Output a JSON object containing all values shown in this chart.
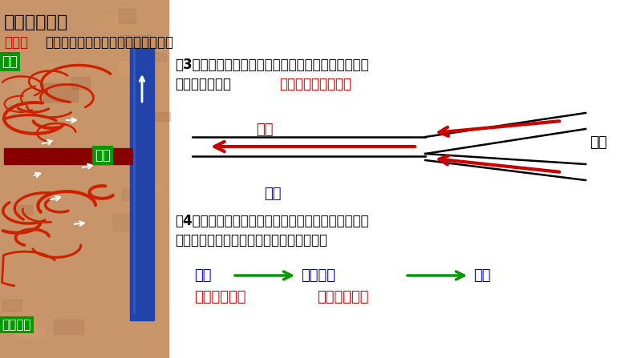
{
  "bg_color": "#ffffff",
  "title": "一、认识血管",
  "subtitle_red": "思考：",
  "subtitle_black": "结合观看的视频，思考以下几个问题",
  "q3_line1_black": "（3）管径最小的血管最终汇入什么血管？这种血管血",
  "q3_line2_black": "流有什么特点？",
  "q3_line2_red": "静脉；血流速度较慢",
  "label_zhuguan": "主干",
  "label_fenzhi": "分支",
  "label_jingmai_diagram": "静脉",
  "q4_line1": "（4）三种血管的血流过程依次是什么血流速度最快的",
  "q4_line2": "是什么血管？血流速度最慢的是什么血管？",
  "flow_dongmai": "动脉",
  "flow_maoxixueguan": "毛细血管",
  "flow_jingmai": "静脉",
  "speed_fast": "血流速度最快",
  "speed_slow": "血流速度最慢",
  "label_dongmai": "动脉",
  "label_jingmai_img": "静脉",
  "label_maoxixueguan_img": "毛细血管",
  "green_label_bg": "#009900",
  "red_color": "#cc0000",
  "blue_color": "#0000cc",
  "green_arrow_color": "#009900",
  "black_color": "#000000",
  "title_color": "#000000",
  "img_bg_color": "#c8956a"
}
